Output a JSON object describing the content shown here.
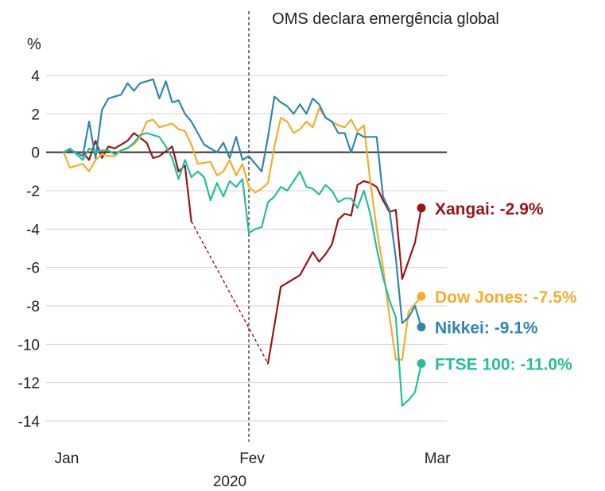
{
  "chart_data": {
    "type": "line",
    "ylabel": "%",
    "xlabel": "2020",
    "ylim": [
      -14,
      4
    ],
    "yticks": [
      4,
      2,
      0,
      -2,
      -4,
      -6,
      -8,
      -10,
      -12,
      -14
    ],
    "xlim": [
      0,
      65
    ],
    "xticks": [
      {
        "x": 2,
        "label": "Jan"
      },
      {
        "x": 31,
        "label": "Fev"
      },
      {
        "x": 60,
        "label": "Mar"
      }
    ],
    "annotation": {
      "x": 31,
      "label": "OMS declara emergência global"
    },
    "grid": true,
    "colors": {
      "Xangai": "#9b1416",
      "Dow Jones": "#f4ad2b",
      "Nikkei": "#2f86b0",
      "FTSE 100": "#26be9b"
    },
    "series": [
      {
        "name": "Xangai",
        "end_label": "Xangai: -2.9%",
        "color": "#9b1416",
        "segments": [
          [
            [
              2,
              0
            ],
            [
              5,
              0
            ],
            [
              6,
              -0.4
            ],
            [
              7,
              0.6
            ],
            [
              8,
              -0.3
            ],
            [
              9,
              0.3
            ],
            [
              10,
              0.2
            ],
            [
              12,
              0.6
            ],
            [
              13,
              1.0
            ],
            [
              15,
              0.5
            ],
            [
              16,
              -0.3
            ],
            [
              17,
              -0.2
            ],
            [
              19,
              0.3
            ],
            [
              20,
              -1.0
            ],
            [
              21,
              -0.7
            ],
            [
              22,
              -3.6
            ]
          ],
          [
            [
              34,
              -11.0
            ],
            [
              35,
              -9.0
            ],
            [
              36,
              -7.0
            ],
            [
              37,
              -6.8
            ],
            [
              39,
              -6.4
            ],
            [
              40,
              -5.8
            ],
            [
              41,
              -5.2
            ],
            [
              42,
              -5.7
            ],
            [
              43,
              -5.3
            ],
            [
              44,
              -4.8
            ],
            [
              45,
              -3.5
            ],
            [
              46,
              -3.2
            ],
            [
              47,
              -3.3
            ],
            [
              48,
              -1.7
            ],
            [
              49,
              -1.5
            ],
            [
              50,
              -1.6
            ],
            [
              51,
              -1.8
            ],
            [
              52,
              -2.5
            ],
            [
              53,
              -3.1
            ],
            [
              54,
              -3.0
            ],
            [
              55,
              -6.6
            ],
            [
              57,
              -4.7
            ],
            [
              58,
              -2.9
            ]
          ]
        ],
        "gap": [
          [
            22,
            -3.6
          ],
          [
            34,
            -11.0
          ]
        ]
      },
      {
        "name": "Dow Jones",
        "end_label": "Dow Jones: -7.5%",
        "color": "#f4ad2b",
        "segments": [
          [
            [
              2,
              0
            ],
            [
              3,
              -0.8
            ],
            [
              5,
              -0.6
            ],
            [
              6,
              -1.0
            ],
            [
              7,
              -0.4
            ],
            [
              8,
              -0.1
            ],
            [
              9,
              -0.2
            ],
            [
              10,
              -0.2
            ],
            [
              11,
              0.1
            ],
            [
              13,
              0.4
            ],
            [
              14,
              0.8
            ],
            [
              15,
              1.6
            ],
            [
              16,
              1.7
            ],
            [
              17,
              1.3
            ],
            [
              19,
              1.5
            ],
            [
              20,
              1.2
            ],
            [
              21,
              1.1
            ],
            [
              22,
              0.4
            ],
            [
              23,
              -0.6
            ],
            [
              25,
              -0.5
            ],
            [
              26,
              -1.2
            ],
            [
              27,
              -1.0
            ],
            [
              28,
              -0.4
            ],
            [
              29,
              -1.2
            ],
            [
              30,
              -0.6
            ],
            [
              31,
              -1.8
            ],
            [
              32,
              -2.1
            ],
            [
              33,
              -1.9
            ],
            [
              34,
              -1.6
            ],
            [
              35,
              0.3
            ],
            [
              36,
              1.8
            ],
            [
              37,
              1.6
            ],
            [
              38,
              1.0
            ],
            [
              39,
              1.2
            ],
            [
              40,
              1.6
            ],
            [
              41,
              1.3
            ],
            [
              42,
              2.3
            ],
            [
              43,
              1.8
            ],
            [
              44,
              1.6
            ],
            [
              45,
              1.4
            ],
            [
              46,
              1.3
            ],
            [
              47,
              1.7
            ],
            [
              48,
              1.1
            ],
            [
              49,
              1.4
            ],
            [
              50,
              -1.5
            ],
            [
              51,
              -4.0
            ],
            [
              52,
              -6.0
            ],
            [
              53,
              -8.5
            ],
            [
              54,
              -10.8
            ],
            [
              55,
              -10.8
            ],
            [
              56,
              -8.3
            ],
            [
              57,
              -7.9
            ],
            [
              58,
              -7.5
            ]
          ]
        ]
      },
      {
        "name": "Nikkei",
        "end_label": "Nikkei: -9.1%",
        "color": "#2f86b0",
        "segments": [
          [
            [
              2,
              0
            ],
            [
              3,
              0.1
            ],
            [
              4,
              0
            ],
            [
              5,
              -0.2
            ],
            [
              6,
              1.6
            ],
            [
              7,
              -0.3
            ],
            [
              8,
              2.2
            ],
            [
              9,
              2.8
            ],
            [
              10,
              2.9
            ],
            [
              11,
              3.0
            ],
            [
              12,
              3.6
            ],
            [
              13,
              3.2
            ],
            [
              14,
              3.6
            ],
            [
              15,
              3.7
            ],
            [
              16,
              3.8
            ],
            [
              17,
              2.8
            ],
            [
              18,
              3.7
            ],
            [
              19,
              2.6
            ],
            [
              20,
              2.7
            ],
            [
              21,
              2.0
            ],
            [
              22,
              1.6
            ],
            [
              23,
              1.0
            ],
            [
              24,
              0.4
            ],
            [
              25,
              0.2
            ],
            [
              26,
              0
            ],
            [
              27,
              0.5
            ],
            [
              28,
              -0.3
            ],
            [
              29,
              0.8
            ],
            [
              30,
              -0.4
            ],
            [
              31,
              -0.2
            ],
            [
              32,
              -0.6
            ],
            [
              33,
              -1.0
            ],
            [
              34,
              0.8
            ],
            [
              35,
              2.9
            ],
            [
              36,
              2.6
            ],
            [
              37,
              2.4
            ],
            [
              38,
              2.0
            ],
            [
              39,
              2.5
            ],
            [
              40,
              2.0
            ],
            [
              41,
              2.8
            ],
            [
              42,
              2.5
            ],
            [
              43,
              1.8
            ],
            [
              44,
              1.6
            ],
            [
              45,
              1.0
            ],
            [
              46,
              1.0
            ],
            [
              47,
              0
            ],
            [
              48,
              1.0
            ],
            [
              49,
              0.8
            ],
            [
              50,
              0.8
            ],
            [
              51,
              0.8
            ],
            [
              52,
              -2.3
            ],
            [
              53,
              -3.0
            ],
            [
              54,
              -5.5
            ],
            [
              55,
              -8.9
            ],
            [
              56,
              -8.6
            ],
            [
              57,
              -8.0
            ],
            [
              58,
              -9.1
            ]
          ]
        ]
      },
      {
        "name": "FTSE 100",
        "end_label": "FTSE 100: -11.0%",
        "color": "#26be9b",
        "segments": [
          [
            [
              2,
              0
            ],
            [
              3,
              0.2
            ],
            [
              4,
              -0.1
            ],
            [
              5,
              -0.4
            ],
            [
              6,
              0.2
            ],
            [
              7,
              0
            ],
            [
              8,
              0.1
            ],
            [
              9,
              0.1
            ],
            [
              10,
              -0.1
            ],
            [
              11,
              0.1
            ],
            [
              12,
              0.2
            ],
            [
              13,
              0.5
            ],
            [
              14,
              0.9
            ],
            [
              15,
              1.0
            ],
            [
              16,
              0.9
            ],
            [
              17,
              0.8
            ],
            [
              18,
              0.3
            ],
            [
              19,
              -0.3
            ],
            [
              20,
              -1.4
            ],
            [
              21,
              -0.4
            ],
            [
              22,
              -1.3
            ],
            [
              23,
              -1.0
            ],
            [
              24,
              -1.3
            ],
            [
              25,
              -2.5
            ],
            [
              26,
              -1.6
            ],
            [
              27,
              -2.3
            ],
            [
              28,
              -1.5
            ],
            [
              29,
              -1.8
            ],
            [
              30,
              -1.4
            ],
            [
              31,
              -4.2
            ],
            [
              32,
              -4.0
            ],
            [
              33,
              -3.9
            ],
            [
              34,
              -2.6
            ],
            [
              35,
              -2.3
            ],
            [
              36,
              -1.8
            ],
            [
              37,
              -2.0
            ],
            [
              38,
              -1.5
            ],
            [
              39,
              -1.0
            ],
            [
              40,
              -1.8
            ],
            [
              41,
              -1.9
            ],
            [
              42,
              -2.2
            ],
            [
              43,
              -1.7
            ],
            [
              44,
              -2.0
            ],
            [
              45,
              -2.6
            ],
            [
              46,
              -2.4
            ],
            [
              47,
              -2.4
            ],
            [
              48,
              -2.9
            ],
            [
              49,
              -2.0
            ],
            [
              50,
              -3.2
            ],
            [
              51,
              -5.0
            ],
            [
              52,
              -6.5
            ],
            [
              53,
              -7.7
            ],
            [
              54,
              -8.6
            ],
            [
              55,
              -13.2
            ],
            [
              56,
              -12.9
            ],
            [
              57,
              -12.5
            ],
            [
              58,
              -11.0
            ]
          ]
        ]
      }
    ]
  }
}
